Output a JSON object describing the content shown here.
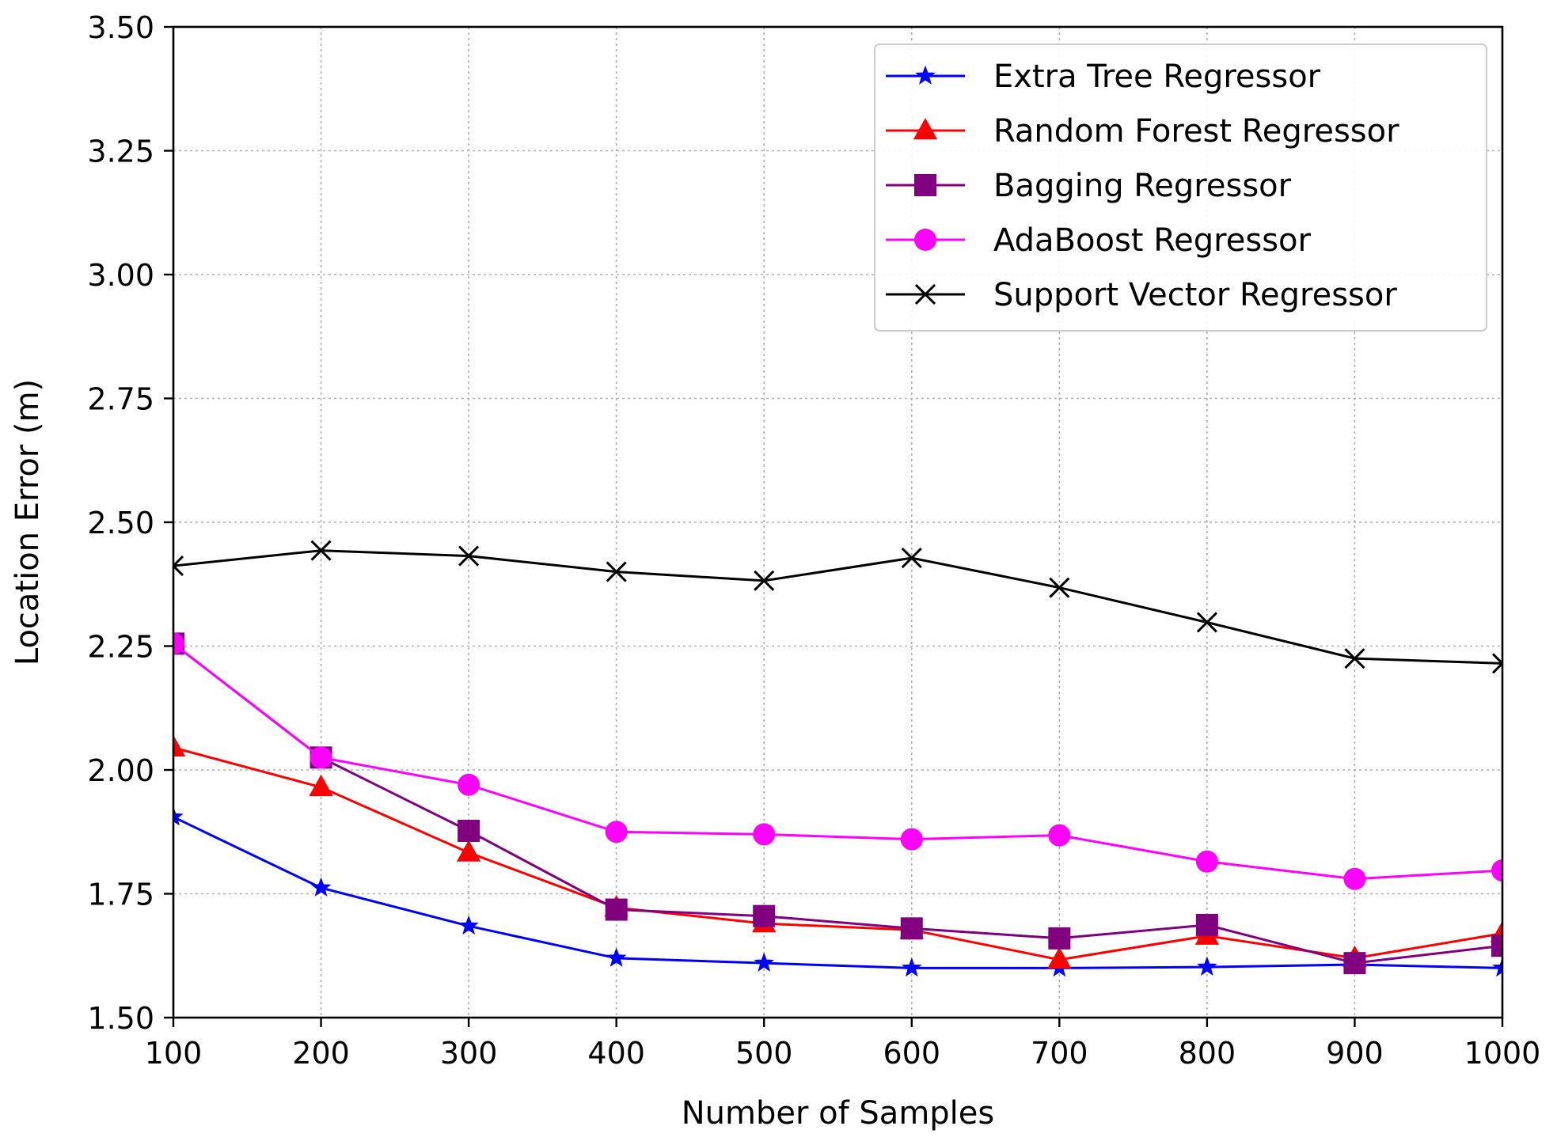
{
  "chart_data": {
    "type": "line",
    "title": "",
    "xlabel": "Number of Samples",
    "ylabel": "Location Error (m)",
    "xlim": [
      100,
      1000
    ],
    "ylim": [
      1.5,
      3.5
    ],
    "x": [
      100,
      200,
      300,
      400,
      500,
      600,
      700,
      800,
      900,
      1000
    ],
    "xticks": [
      "100",
      "200",
      "300",
      "400",
      "500",
      "600",
      "700",
      "800",
      "900",
      "1000"
    ],
    "yticks": [
      "1.50",
      "1.75",
      "2.00",
      "2.25",
      "2.50",
      "2.75",
      "3.00",
      "3.25",
      "3.50"
    ],
    "ytick_values": [
      1.5,
      1.75,
      2.0,
      2.25,
      2.5,
      2.75,
      3.0,
      3.25,
      3.5
    ],
    "grid": true,
    "legend_position": "top-right",
    "series": [
      {
        "name": "Extra Tree Regressor",
        "color": "#0000ff",
        "marker": "star",
        "values": [
          1.905,
          1.762,
          1.685,
          1.62,
          1.61,
          1.6,
          1.6,
          1.602,
          1.607,
          1.6
        ]
      },
      {
        "name": "Random Forest Regressor",
        "color": "#ff0000",
        "marker": "triangle",
        "values": [
          2.045,
          1.965,
          1.833,
          1.722,
          1.69,
          1.677,
          1.617,
          1.665,
          1.62,
          1.67
        ]
      },
      {
        "name": "Bagging Regressor",
        "color": "#800080",
        "marker": "square",
        "values": [
          2.255,
          2.025,
          1.877,
          1.718,
          1.705,
          1.68,
          1.66,
          1.687,
          1.61,
          1.645
        ]
      },
      {
        "name": "AdaBoost Regressor",
        "color": "#ff00ff",
        "marker": "circle",
        "values": [
          2.255,
          2.025,
          1.97,
          1.875,
          1.87,
          1.86,
          1.868,
          1.815,
          1.78,
          1.797
        ]
      },
      {
        "name": "Support Vector Regressor",
        "color": "#000000",
        "marker": "x",
        "values": [
          2.412,
          2.443,
          2.432,
          2.4,
          2.382,
          2.428,
          2.368,
          2.298,
          2.225,
          2.215
        ]
      }
    ]
  }
}
